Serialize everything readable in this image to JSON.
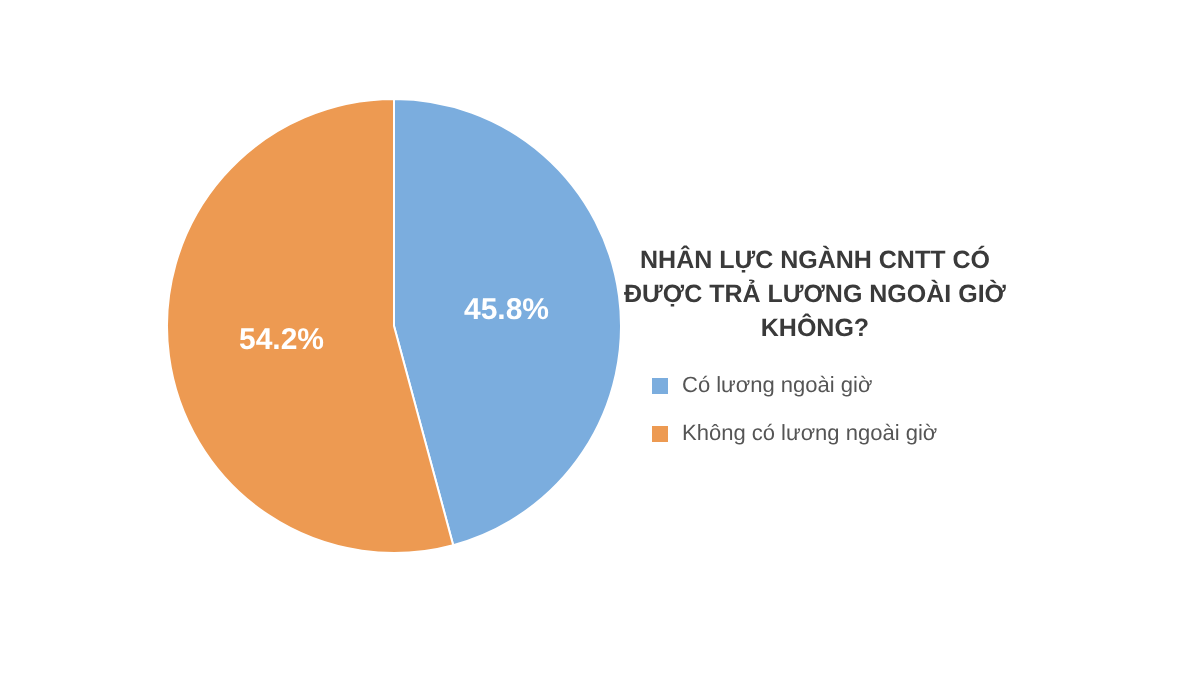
{
  "chart_data": {
    "type": "pie",
    "title": "NHÂN LỰC NGÀNH CNTT CÓ ĐƯỢC TRẢ LƯƠNG NGOÀI GIỜ KHÔNG?",
    "categories": [
      "Có lương ngoài giờ",
      "Không có lương ngoài giờ"
    ],
    "values": [
      45.8,
      54.2
    ],
    "colors": [
      "#7badde",
      "#ed9a52"
    ],
    "value_labels": [
      "45.8%",
      "54.2%"
    ],
    "legend": "right"
  }
}
